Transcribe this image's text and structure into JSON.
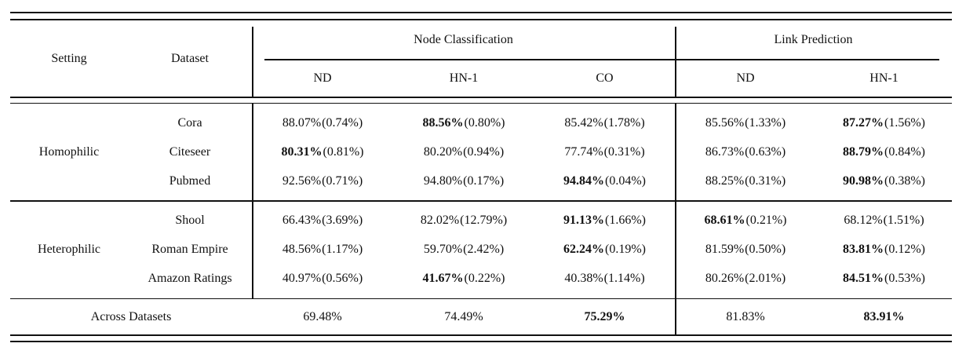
{
  "page": {
    "background": "#ffffff",
    "text_color": "#111111",
    "rule_color": "#111111"
  },
  "table": {
    "headers": {
      "setting": "Setting",
      "dataset": "Dataset",
      "node_classification": "Node Classification",
      "link_prediction": "Link Prediction",
      "nc_subcols": [
        "ND",
        "HN-1",
        "CO"
      ],
      "lp_subcols": [
        "ND",
        "HN-1"
      ]
    },
    "sections": [
      {
        "setting": "Homophilic",
        "rows": [
          {
            "dataset": "Cora",
            "cells": [
              {
                "v": "88.07%",
                "s": "(0.74%)",
                "bold": false
              },
              {
                "v": "88.56%",
                "s": "(0.80%)",
                "bold": true
              },
              {
                "v": "85.42%",
                "s": "(1.78%)",
                "bold": false
              },
              {
                "v": "85.56%",
                "s": "(1.33%)",
                "bold": false
              },
              {
                "v": "87.27%",
                "s": "(1.56%)",
                "bold": true
              }
            ]
          },
          {
            "dataset": "Citeseer",
            "cells": [
              {
                "v": "80.31%",
                "s": "(0.81%)",
                "bold": true
              },
              {
                "v": "80.20%",
                "s": "(0.94%)",
                "bold": false
              },
              {
                "v": "77.74%",
                "s": "(0.31%)",
                "bold": false
              },
              {
                "v": "86.73%",
                "s": "(0.63%)",
                "bold": false
              },
              {
                "v": "88.79%",
                "s": "(0.84%)",
                "bold": true
              }
            ]
          },
          {
            "dataset": "Pubmed",
            "cells": [
              {
                "v": "92.56%",
                "s": "(0.71%)",
                "bold": false
              },
              {
                "v": "94.80%",
                "s": "(0.17%)",
                "bold": false
              },
              {
                "v": "94.84%",
                "s": "(0.04%)",
                "bold": true
              },
              {
                "v": "88.25%",
                "s": "(0.31%)",
                "bold": false
              },
              {
                "v": "90.98%",
                "s": "(0.38%)",
                "bold": true
              }
            ]
          }
        ]
      },
      {
        "setting": "Heterophilic",
        "rows": [
          {
            "dataset": "Shool",
            "cells": [
              {
                "v": "66.43%",
                "s": "(3.69%)",
                "bold": false
              },
              {
                "v": "82.02%",
                "s": "(12.79%)",
                "bold": false
              },
              {
                "v": "91.13%",
                "s": "(1.66%)",
                "bold": true
              },
              {
                "v": "68.61%",
                "s": "(0.21%)",
                "bold": true
              },
              {
                "v": "68.12%",
                "s": "(1.51%)",
                "bold": false
              }
            ]
          },
          {
            "dataset": "Roman Empire",
            "cells": [
              {
                "v": "48.56%",
                "s": "(1.17%)",
                "bold": false
              },
              {
                "v": "59.70%",
                "s": "(2.42%)",
                "bold": false
              },
              {
                "v": "62.24%",
                "s": "(0.19%)",
                "bold": true
              },
              {
                "v": "81.59%",
                "s": "(0.50%)",
                "bold": false
              },
              {
                "v": "83.81%",
                "s": "(0.12%)",
                "bold": true
              }
            ]
          },
          {
            "dataset": "Amazon Ratings",
            "cells": [
              {
                "v": "40.97%",
                "s": "(0.56%)",
                "bold": false
              },
              {
                "v": "41.67%",
                "s": "(0.22%)",
                "bold": true
              },
              {
                "v": "40.38%",
                "s": "(1.14%)",
                "bold": false
              },
              {
                "v": "80.26%",
                "s": "(2.01%)",
                "bold": false
              },
              {
                "v": "84.51%",
                "s": "(0.53%)",
                "bold": true
              }
            ]
          }
        ]
      }
    ],
    "footer": {
      "label": "Across Datasets",
      "cells": [
        {
          "v": "69.48%",
          "bold": false
        },
        {
          "v": "74.49%",
          "bold": false
        },
        {
          "v": "75.29%",
          "bold": true
        },
        {
          "v": "81.83%",
          "bold": false
        },
        {
          "v": "83.91%",
          "bold": true
        }
      ]
    }
  }
}
